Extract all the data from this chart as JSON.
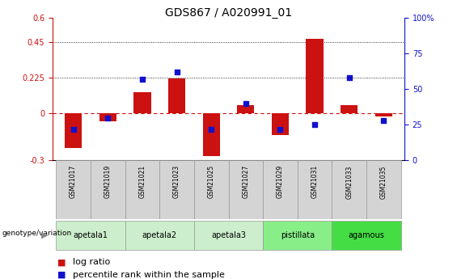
{
  "title": "GDS867 / A020991_01",
  "samples": [
    "GSM21017",
    "GSM21019",
    "GSM21021",
    "GSM21023",
    "GSM21025",
    "GSM21027",
    "GSM21029",
    "GSM21031",
    "GSM21033",
    "GSM21035"
  ],
  "log_ratio": [
    -0.22,
    -0.05,
    0.13,
    0.22,
    -0.27,
    0.05,
    -0.14,
    0.47,
    0.05,
    -0.02
  ],
  "percentile": [
    22,
    30,
    57,
    62,
    22,
    40,
    22,
    25,
    58,
    28
  ],
  "ylim_left": [
    -0.3,
    0.6
  ],
  "ylim_right": [
    0,
    100
  ],
  "yticks_left": [
    -0.3,
    0.0,
    0.225,
    0.45,
    0.6
  ],
  "yticks_right": [
    0,
    25,
    50,
    75,
    100
  ],
  "hlines": [
    0.225,
    0.45
  ],
  "bar_color": "#cc1111",
  "dot_color": "#1111cc",
  "zero_line_color": "#cc1111",
  "groups": [
    {
      "label": "apetala1",
      "start": 0,
      "end": 1,
      "color": "#cceecc"
    },
    {
      "label": "apetala2",
      "start": 2,
      "end": 3,
      "color": "#cceecc"
    },
    {
      "label": "apetala3",
      "start": 4,
      "end": 5,
      "color": "#cceecc"
    },
    {
      "label": "pistillata",
      "start": 6,
      "end": 7,
      "color": "#88ee88"
    },
    {
      "label": "agamous",
      "start": 8,
      "end": 9,
      "color": "#44dd44"
    }
  ],
  "bar_width": 0.5,
  "background_color": "#ffffff",
  "title_fontsize": 10,
  "tick_fontsize": 7,
  "legend_fontsize": 8
}
